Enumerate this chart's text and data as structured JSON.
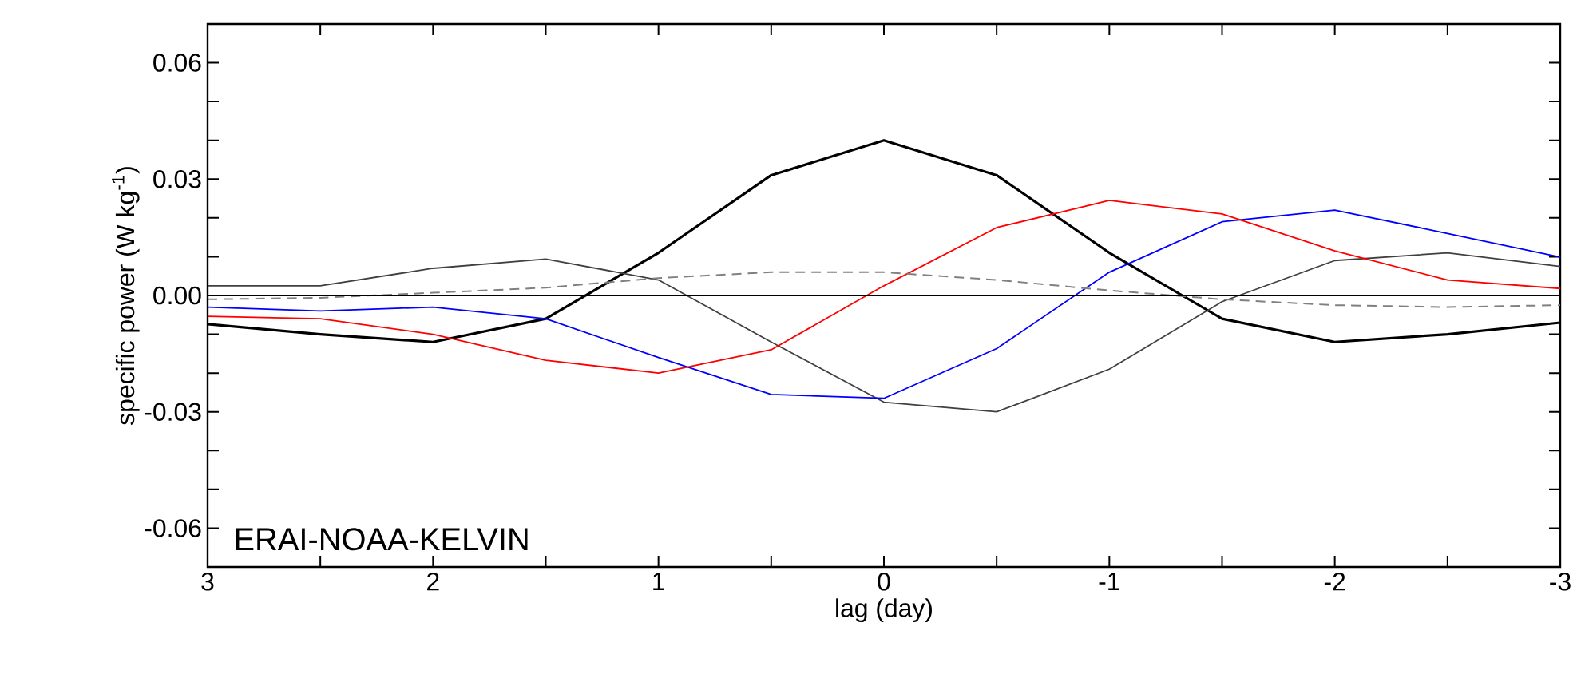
{
  "chart_data": {
    "type": "line",
    "xlabel": "lag (day)",
    "ylabel": "specific power (W kg$^{-1}$)",
    "annotations": [
      "ERAI-NOAA-KELVIN"
    ],
    "x": [
      3,
      2.5,
      2,
      1.5,
      1,
      0.5,
      0,
      -0.5,
      -1,
      -1.5,
      -2,
      -2.5,
      -3
    ],
    "series": [
      {
        "color": "#000000",
        "values": [
          -0.0074,
          -0.01,
          -0.012,
          -0.006,
          0.011,
          0.031,
          0.04,
          0.031,
          0.011,
          -0.006,
          -0.012,
          -0.01,
          -0.007
        ]
      },
      {
        "color": "#404040",
        "values": [
          0.0025,
          0.0025,
          0.007,
          0.0094,
          0.004,
          -0.012,
          -0.0275,
          -0.03,
          -0.019,
          -0.0016,
          0.009,
          0.011,
          0.0075
        ]
      },
      {
        "color": "#0000ff",
        "values": [
          -0.003,
          -0.004,
          -0.003,
          -0.006,
          -0.016,
          -0.0255,
          -0.0265,
          -0.0137,
          0.006,
          0.019,
          0.022,
          0.016,
          0.0099
        ]
      },
      {
        "color": "#ff0000",
        "values": [
          -0.0054,
          -0.006,
          -0.01,
          -0.0167,
          -0.02,
          -0.014,
          0.0025,
          0.0175,
          0.0245,
          0.021,
          0.0115,
          0.004,
          0.0018
        ]
      },
      {
        "color": "#808080",
        "line_style": "dashed",
        "values": [
          -0.001,
          -0.0006,
          0.0007,
          0.002,
          0.0045,
          0.006,
          0.006,
          0.004,
          0.0013,
          -0.001,
          -0.0025,
          -0.003,
          -0.0025
        ]
      }
    ],
    "xlim": [
      3,
      -3
    ],
    "xticks": [
      3,
      {
        "value": 2.5,
        "label": null
      },
      2,
      {
        "value": 1.5,
        "label": null
      },
      1,
      {
        "value": 0.5,
        "label": null
      },
      0,
      {
        "value": -0.5,
        "label": null
      },
      -1,
      {
        "value": -1.5,
        "label": null
      },
      -2,
      {
        "value": -2.5,
        "label": null
      },
      -3
    ],
    "ylim": [
      -0.07,
      0.07
    ],
    "yticks": [
      {
        "value": -0.06,
        "label": "-0.06"
      },
      {
        "value": -0.05,
        "label": null
      },
      {
        "value": -0.04,
        "label": null
      },
      {
        "value": -0.03,
        "label": "-0.03"
      },
      {
        "value": -0.02,
        "label": null
      },
      {
        "value": -0.01,
        "label": null
      },
      {
        "value": 0,
        "label": "0.00"
      },
      {
        "value": 0.01,
        "label": null
      },
      {
        "value": 0.02,
        "label": null
      },
      {
        "value": 0.03,
        "label": "0.03"
      },
      {
        "value": 0.04,
        "label": null
      },
      {
        "value": 0.05,
        "label": null
      },
      {
        "value": 0.06,
        "label": "0.06"
      }
    ],
    "ref_lines": [
      {
        "axis": "y",
        "value": 0,
        "color": "#000000"
      }
    ],
    "marker": "none",
    "line_style": "solid"
  }
}
